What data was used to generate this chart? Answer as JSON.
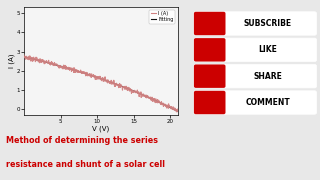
{
  "title_line1": "Method of determining the series",
  "title_line2": "resistance and shunt of a solar cell",
  "title_color": "#cc0000",
  "xlabel": "V (V)",
  "ylabel": "I (A)",
  "xlim": [
    0,
    21
  ],
  "ylim": [
    -0.3,
    5.3
  ],
  "xticks": [
    5,
    10,
    15,
    20
  ],
  "yticks": [
    0,
    1,
    2,
    3,
    4,
    5
  ],
  "legend_labels": [
    "I (A)",
    "Fitting"
  ],
  "measured_color": "#d08080",
  "fitting_color": "#111111",
  "bg_color": "#e8e8e8",
  "plot_bg": "#f5f5f5",
  "sidebar_bg": "#000000",
  "button_color": "#cc0000",
  "button_border": "#ffffff",
  "buttons": [
    "SUBSCRIBE",
    "LIKE",
    "SHARE",
    "COMMENT"
  ],
  "font_size": 5.0,
  "tick_size": 4.0
}
